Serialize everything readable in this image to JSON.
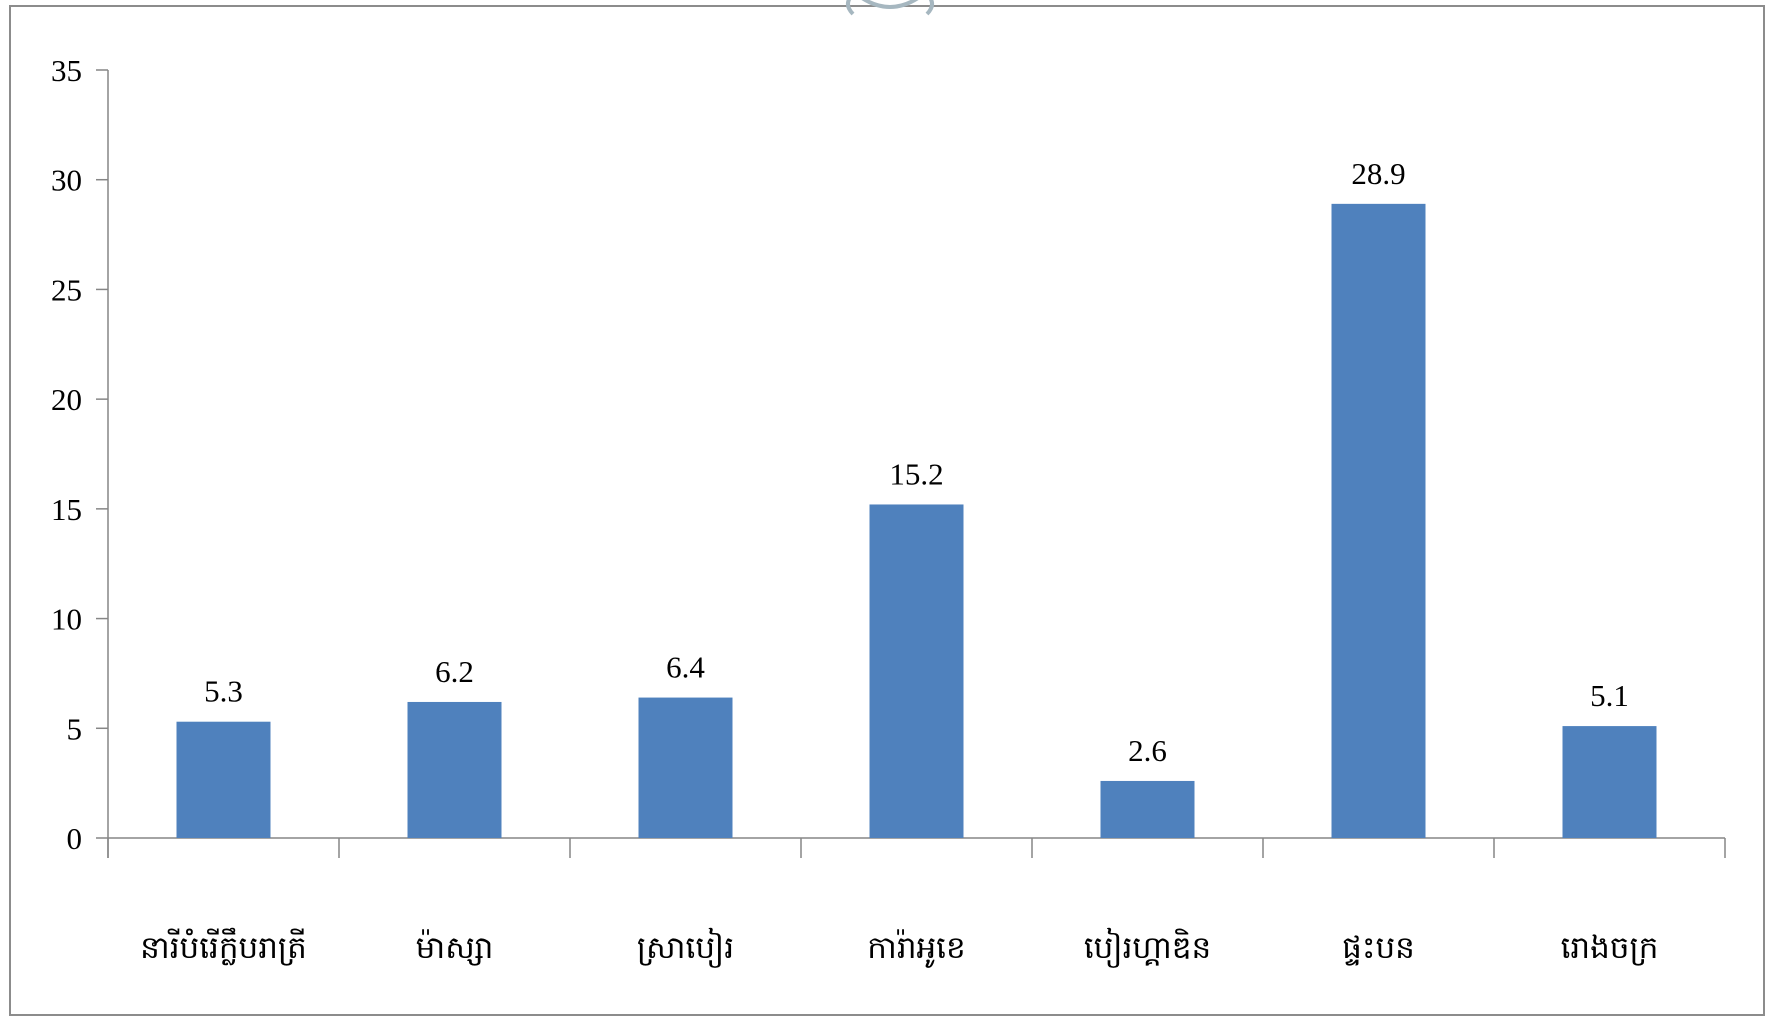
{
  "colors": {
    "bar": "#4f81bd",
    "axis": "#868686",
    "frame": "#8c8c8c",
    "ornament": "#a6b7c0"
  },
  "chart_data": {
    "type": "bar",
    "title": "",
    "xlabel": "",
    "ylabel": "",
    "categories": [
      "នារីបំរើក្លឹបរាត្រី",
      "ម៉ាស្សា",
      "ស្រាបៀរ",
      "ការ៉ាអូខេ",
      "បៀរហ្គាឌិន",
      "ផ្ទះបន",
      "រោងចក្រ"
    ],
    "values": [
      5.3,
      6.2,
      6.4,
      15.2,
      2.6,
      28.9,
      5.1
    ],
    "data_labels": [
      "5.3",
      "6.2",
      "6.4",
      "15.2",
      "2.6",
      "28.9",
      "5.1"
    ],
    "ylim": [
      0,
      35
    ],
    "yticks": [
      0,
      5,
      10,
      15,
      20,
      25,
      30,
      35
    ],
    "grid": false,
    "legend": "none"
  }
}
